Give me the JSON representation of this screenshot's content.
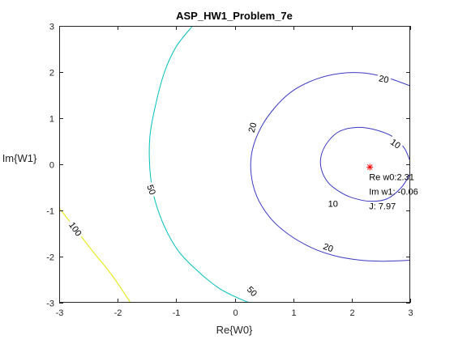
{
  "chart_data": {
    "type": "contour",
    "title": "ASP_HW1_Problem_7e",
    "xlabel": "Re{W0}",
    "ylabel": "Im{W1}",
    "xlim": [
      -3,
      3
    ],
    "ylim": [
      -3,
      3
    ],
    "xticks": [
      -3,
      -2,
      -1,
      0,
      1,
      2,
      3
    ],
    "yticks": [
      -3,
      -2,
      -1,
      0,
      1,
      2,
      3
    ],
    "xtick_labels": [
      "-3",
      "-2",
      "-1",
      "0",
      "1",
      "2",
      "3"
    ],
    "ytick_labels": [
      "-3",
      "-2",
      "-1",
      "0",
      "1",
      "2",
      "3"
    ],
    "grid": false,
    "minimum": {
      "x": 2.31,
      "y": -0.06,
      "marker": "*",
      "color": "#ff0000"
    },
    "annotation_lines": [
      "Re w0:2.31",
      "Im w1: -0.06",
      "J: 7.97"
    ],
    "contours": [
      {
        "level": 10,
        "label": "10",
        "color": "#3b3bc4",
        "label_positions": [
          {
            "x": 2.75,
            "y": 0.45,
            "angle": 35
          },
          {
            "x": 1.68,
            "y": -0.85,
            "angle": 0
          }
        ],
        "points": [
          [
            3.0,
            0.06
          ],
          [
            2.9,
            0.35
          ],
          [
            2.7,
            0.6
          ],
          [
            2.4,
            0.75
          ],
          [
            2.1,
            0.8
          ],
          [
            1.8,
            0.72
          ],
          [
            1.6,
            0.5
          ],
          [
            1.48,
            0.2
          ],
          [
            1.48,
            -0.1
          ],
          [
            1.6,
            -0.4
          ],
          [
            1.8,
            -0.6
          ],
          [
            2.0,
            -0.72
          ],
          [
            2.3,
            -0.8
          ],
          [
            2.6,
            -0.75
          ],
          [
            2.85,
            -0.5
          ],
          [
            3.0,
            -0.2
          ]
        ]
      },
      {
        "level": 20,
        "label": "20",
        "color": "#3b3bc4",
        "label_positions": [
          {
            "x": 2.55,
            "y": 1.85,
            "angle": 12
          },
          {
            "x": 0.3,
            "y": 0.8,
            "angle": -75
          },
          {
            "x": 1.6,
            "y": -1.8,
            "angle": 20
          }
        ],
        "points": [
          [
            3.0,
            1.7
          ],
          [
            2.6,
            1.88
          ],
          [
            2.2,
            1.98
          ],
          [
            1.8,
            1.97
          ],
          [
            1.4,
            1.85
          ],
          [
            1.0,
            1.6
          ],
          [
            0.7,
            1.25
          ],
          [
            0.45,
            0.8
          ],
          [
            0.3,
            0.3
          ],
          [
            0.28,
            -0.2
          ],
          [
            0.38,
            -0.7
          ],
          [
            0.6,
            -1.15
          ],
          [
            0.9,
            -1.5
          ],
          [
            1.3,
            -1.8
          ],
          [
            1.7,
            -1.98
          ],
          [
            2.1,
            -2.07
          ],
          [
            2.5,
            -2.1
          ],
          [
            3.0,
            -2.08
          ]
        ]
      },
      {
        "level": 50,
        "label": "50",
        "color": "#00bfbf",
        "label_positions": [
          {
            "x": -1.42,
            "y": -0.55,
            "angle": 70
          },
          {
            "x": 0.3,
            "y": -2.75,
            "angle": 45
          }
        ],
        "points": [
          [
            -0.72,
            3.0
          ],
          [
            -1.0,
            2.55
          ],
          [
            -1.2,
            2.0
          ],
          [
            -1.35,
            1.3
          ],
          [
            -1.45,
            0.6
          ],
          [
            -1.45,
            -0.1
          ],
          [
            -1.38,
            -0.7
          ],
          [
            -1.2,
            -1.35
          ],
          [
            -0.95,
            -1.9
          ],
          [
            -0.6,
            -2.35
          ],
          [
            -0.25,
            -2.7
          ],
          [
            0.15,
            -2.95
          ],
          [
            0.28,
            -3.0
          ]
        ]
      },
      {
        "level": 100,
        "label": "100",
        "color": "#e6e600",
        "label_positions": [
          {
            "x": -2.72,
            "y": -1.4,
            "angle": 55
          }
        ],
        "points": [
          [
            -3.0,
            -0.95
          ],
          [
            -2.75,
            -1.35
          ],
          [
            -2.45,
            -1.85
          ],
          [
            -2.1,
            -2.4
          ],
          [
            -1.78,
            -3.0
          ]
        ]
      }
    ]
  }
}
